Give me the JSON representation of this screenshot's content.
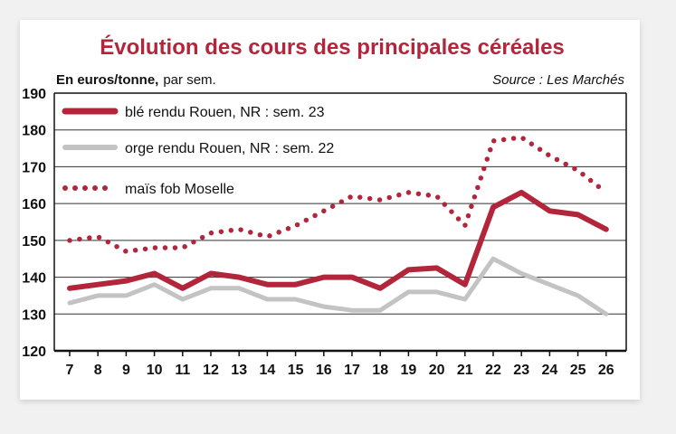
{
  "chart_data": {
    "type": "line",
    "title": "Évolution des cours des principales céréales",
    "unit_label": "En euros/tonne,",
    "unit_sub": "par sem.",
    "source": "Source : Les Marchés",
    "x": [
      7,
      8,
      9,
      10,
      11,
      12,
      13,
      14,
      15,
      16,
      17,
      18,
      19,
      20,
      21,
      22,
      23,
      24,
      25,
      26
    ],
    "ylim": [
      120,
      190
    ],
    "yticks": [
      120,
      130,
      140,
      150,
      160,
      170,
      180,
      190
    ],
    "grid": true,
    "legend_position": "top-left",
    "series": [
      {
        "name": "blé rendu Rouen, NR : sem. 23",
        "style": "solid-thick",
        "color": "#b3253b",
        "values": [
          137,
          138,
          139,
          141,
          137,
          141,
          140,
          138,
          138,
          140,
          140,
          137,
          142,
          142.5,
          138,
          159,
          163,
          158,
          157,
          153
        ]
      },
      {
        "name": "orge rendu Rouen, NR : sem. 22",
        "style": "solid",
        "color": "#c3c3c3",
        "values": [
          133,
          135,
          135,
          138,
          134,
          137,
          137,
          134,
          134,
          132,
          131,
          131,
          136,
          136,
          134,
          145,
          141,
          138,
          135,
          130
        ]
      },
      {
        "name": "maïs fob Moselle",
        "style": "dotted",
        "color": "#b3253b",
        "values": [
          150,
          151,
          147,
          148,
          148,
          152,
          153,
          151,
          154,
          158,
          162,
          161,
          163,
          162,
          154,
          177,
          178,
          173,
          169,
          163
        ]
      }
    ]
  }
}
